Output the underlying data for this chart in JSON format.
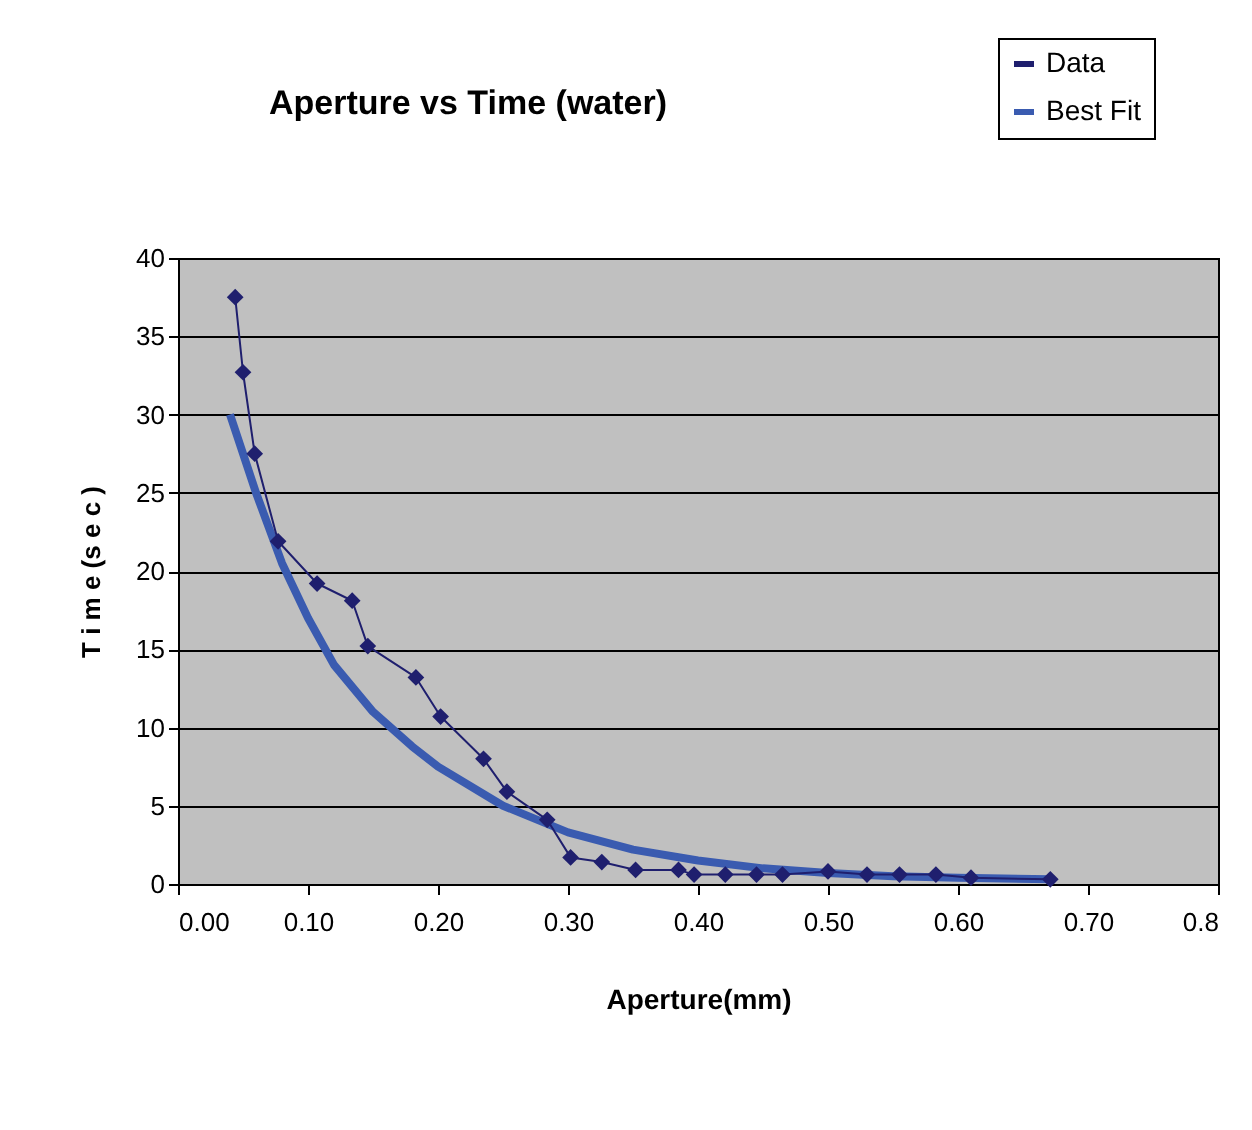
{
  "chart_data": {
    "type": "line",
    "title": "Aperture vs Time (water)",
    "xlabel": "Aperture(mm)",
    "ylabel": "T i m e (s e c )",
    "xlim": [
      0,
      0.8
    ],
    "xticks": [
      {
        "value": 0,
        "label": "0.00"
      },
      {
        "value": 0.1,
        "label": "0.10"
      },
      {
        "value": 0.2,
        "label": "0.20"
      },
      {
        "value": 0.3,
        "label": "0.30"
      },
      {
        "value": 0.4,
        "label": "0.40"
      },
      {
        "value": 0.5,
        "label": "0.50"
      },
      {
        "value": 0.6,
        "label": "0.60"
      },
      {
        "value": 0.7,
        "label": "0.70"
      },
      {
        "value": 0.8,
        "label": "0.8"
      }
    ],
    "ylim": [
      0,
      40
    ],
    "yticks": [
      0,
      5,
      10,
      15,
      20,
      25,
      30,
      35,
      40
    ],
    "grid": "y",
    "legend": "top right",
    "series": [
      {
        "name": "Data",
        "color": "#1f1f6e",
        "marker": "diamond",
        "x": [
          0.044,
          0.05,
          0.059,
          0.077,
          0.107,
          0.134,
          0.146,
          0.183,
          0.202,
          0.235,
          0.253,
          0.284,
          0.302,
          0.326,
          0.352,
          0.385,
          0.397,
          0.421,
          0.445,
          0.465,
          0.5,
          0.53,
          0.555,
          0.583,
          0.61,
          0.671
        ],
        "values": [
          37.5,
          32.7,
          27.5,
          21.9,
          19.2,
          18.1,
          15.2,
          13.2,
          10.7,
          8.0,
          5.9,
          4.1,
          1.7,
          1.4,
          0.9,
          0.9,
          0.6,
          0.6,
          0.6,
          0.6,
          0.8,
          0.6,
          0.6,
          0.6,
          0.4,
          0.3
        ]
      },
      {
        "name": "Best Fit",
        "color": "#3a5bb0",
        "marker": "none",
        "x": [
          0.04,
          0.06,
          0.08,
          0.1,
          0.12,
          0.15,
          0.18,
          0.2,
          0.25,
          0.3,
          0.35,
          0.4,
          0.45,
          0.5,
          0.55,
          0.6,
          0.671
        ],
        "values": [
          30,
          25,
          20.5,
          17,
          14,
          11,
          8.8,
          7.5,
          5,
          3.3,
          2.2,
          1.5,
          1.0,
          0.7,
          0.5,
          0.4,
          0.3
        ]
      }
    ]
  }
}
